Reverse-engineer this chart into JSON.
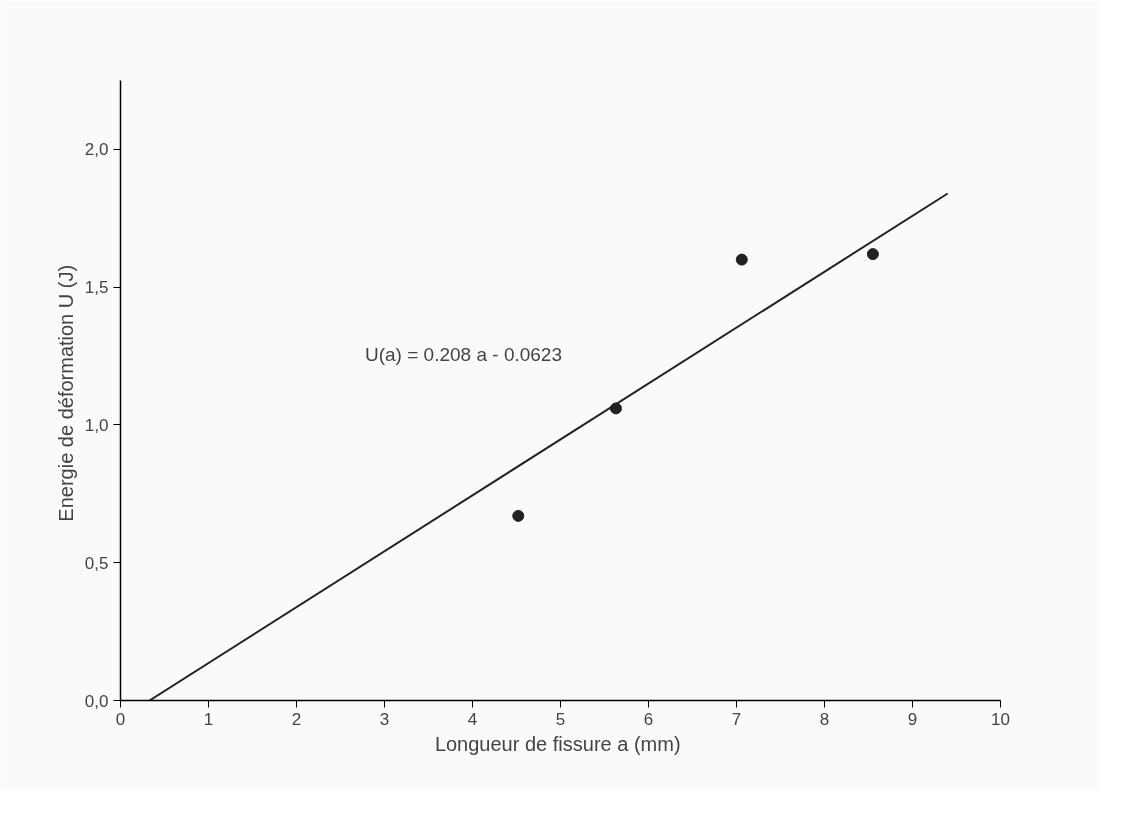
{
  "chart_data": {
    "type": "scatter",
    "xlabel": "Longueur de fissure a  (mm)",
    "ylabel": "Energie de déformation U  (J)",
    "x": [
      4.52,
      5.63,
      7.06,
      8.55
    ],
    "series": [
      {
        "color": "#222222",
        "values": [
          0.67,
          1.06,
          1.6,
          1.62
        ],
        "marker": "circle"
      },
      {
        "type": "line",
        "color": "#222222",
        "x": [
          0.33,
          9.4
        ],
        "values": [
          0,
          1.84
        ],
        "line_style": "solid"
      }
    ],
    "annotations": [
      "U(a) = 0.208 a - 0.0623"
    ],
    "xlim": [
      0,
      10
    ],
    "ylim": [
      0,
      2.25
    ],
    "xticks": [
      0,
      1,
      2,
      3,
      4,
      5,
      6,
      7,
      8,
      9,
      10
    ],
    "yticks": [
      {
        "value": 0,
        "label": "0,0"
      },
      {
        "value": 0.5,
        "label": "0,5"
      },
      {
        "value": 1,
        "label": "1,0"
      },
      {
        "value": 1.5,
        "label": "1,5"
      },
      {
        "value": 2,
        "label": "2,0"
      }
    ],
    "grid": false
  }
}
